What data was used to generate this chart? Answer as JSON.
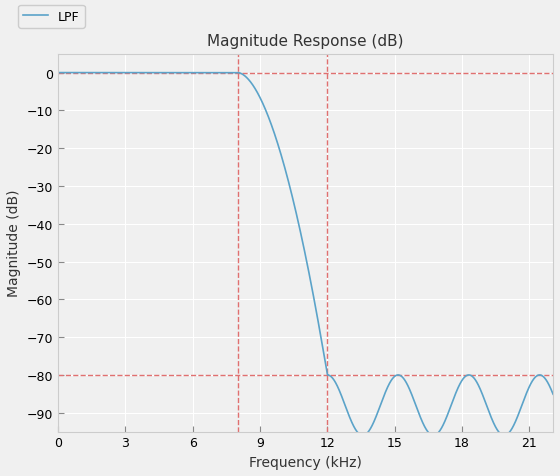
{
  "title": "Magnitude Response (dB)",
  "xlabel": "Frequency (kHz)",
  "ylabel": "Magnitude (dB)",
  "legend_label": "LPF",
  "xlim": [
    0,
    22.05
  ],
  "ylim": [
    -95,
    5
  ],
  "yticks": [
    0,
    -10,
    -20,
    -30,
    -40,
    -50,
    -60,
    -70,
    -80,
    -90
  ],
  "xticks": [
    0,
    3,
    6,
    9,
    12,
    15,
    18,
    21
  ],
  "line_color": "#5ba3c9",
  "dashed_color": "#e07070",
  "passband_edge": 8.0,
  "stopband_edge": 12.0,
  "stopband_attn": -80,
  "ripple_period": 3.15,
  "ripple_depth": 16,
  "axes_facecolor": "#f0f0f0",
  "grid_color": "#ffffff",
  "title_fontsize": 11,
  "axis_fontsize": 10,
  "tick_fontsize": 9,
  "legend_fontsize": 9
}
